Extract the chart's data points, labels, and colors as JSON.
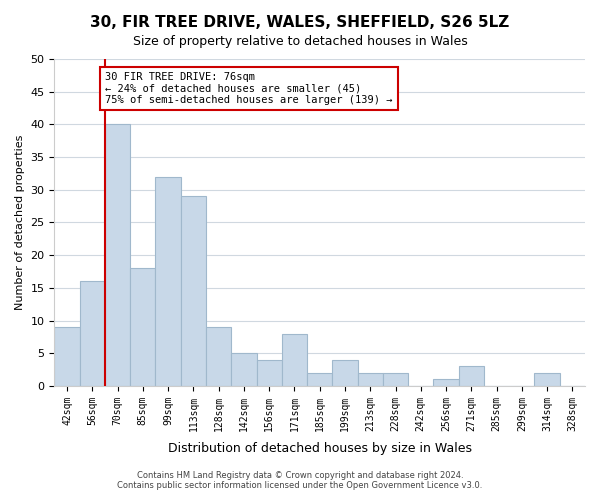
{
  "title": "30, FIR TREE DRIVE, WALES, SHEFFIELD, S26 5LZ",
  "subtitle": "Size of property relative to detached houses in Wales",
  "xlabel": "Distribution of detached houses by size in Wales",
  "ylabel": "Number of detached properties",
  "bar_labels": [
    "42sqm",
    "56sqm",
    "70sqm",
    "85sqm",
    "99sqm",
    "113sqm",
    "128sqm",
    "142sqm",
    "156sqm",
    "171sqm",
    "185sqm",
    "199sqm",
    "213sqm",
    "228sqm",
    "242sqm",
    "256sqm",
    "271sqm",
    "285sqm",
    "299sqm",
    "314sqm",
    "328sqm"
  ],
  "bar_values": [
    9,
    16,
    40,
    18,
    32,
    29,
    9,
    5,
    4,
    8,
    2,
    4,
    2,
    2,
    0,
    1,
    3,
    0,
    0,
    2,
    0
  ],
  "bar_color": "#c8d8e8",
  "bar_edge_color": "#a0b8cc",
  "vline_x": 1,
  "vline_color": "#cc0000",
  "ylim": [
    0,
    50
  ],
  "yticks": [
    0,
    5,
    10,
    15,
    20,
    25,
    30,
    35,
    40,
    45,
    50
  ],
  "annotation_text": "30 FIR TREE DRIVE: 76sqm\n← 24% of detached houses are smaller (45)\n75% of semi-detached houses are larger (139) →",
  "annotation_box_color": "#ffffff",
  "annotation_box_edge_color": "#cc0000",
  "footer_line1": "Contains HM Land Registry data © Crown copyright and database right 2024.",
  "footer_line2": "Contains public sector information licensed under the Open Government Licence v3.0.",
  "bg_color": "#ffffff",
  "grid_color": "#d0d8e0"
}
